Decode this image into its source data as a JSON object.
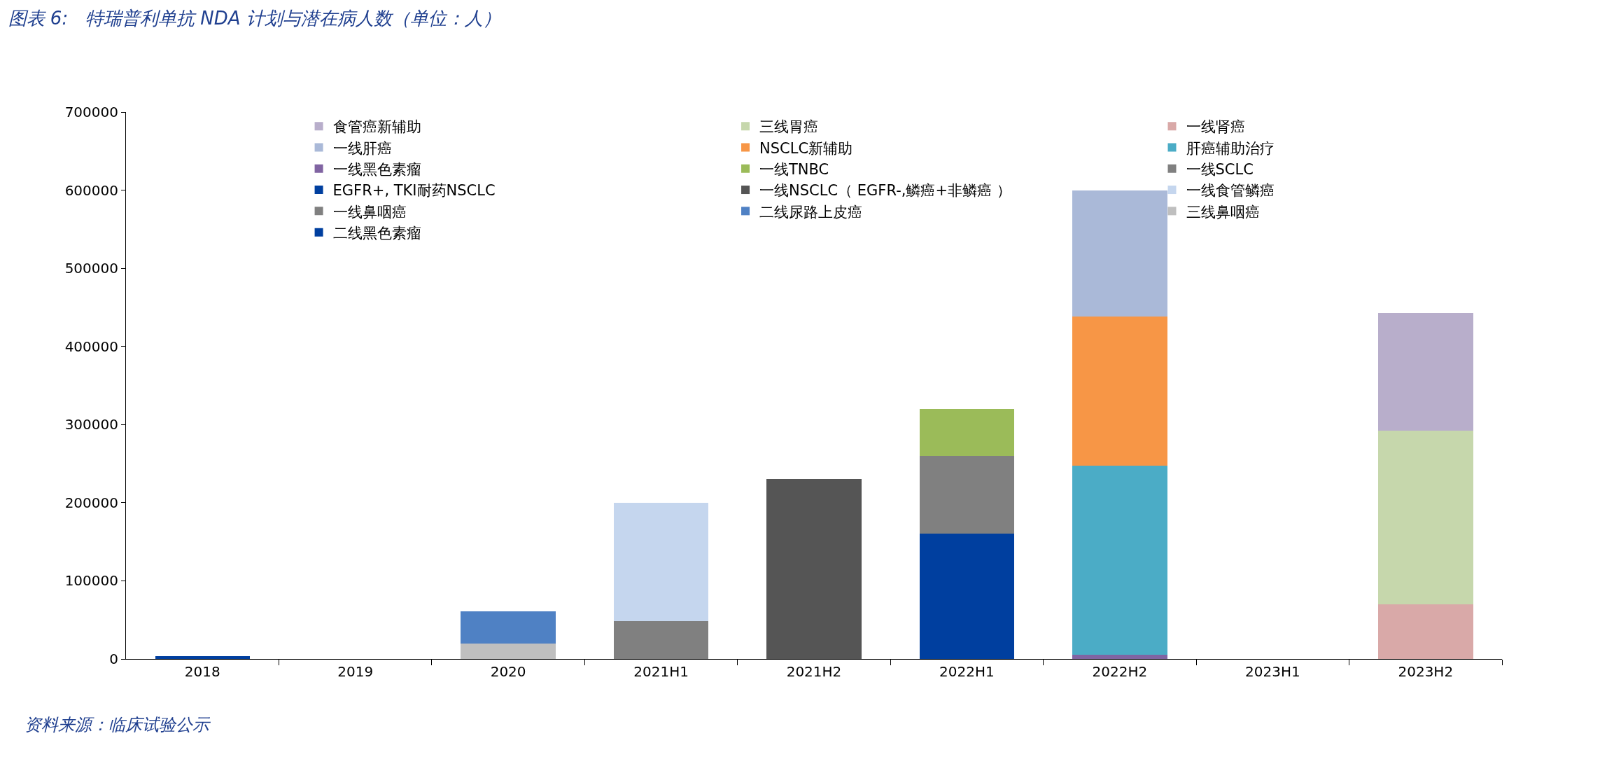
{
  "chart_data": {
    "type": "bar",
    "stacked": true,
    "title": "图表 6:   特瑞普利单抗 NDA 计划与潜在病人数（单位：人）",
    "annotations": [
      "资料来源：临床试验公示"
    ],
    "categories": [
      "2018",
      "2019",
      "2020",
      "2021H1",
      "2021H2",
      "2022H1",
      "2022H2",
      "2023H1",
      "2023H2"
    ],
    "ylim": [
      0,
      700000
    ],
    "yticks": [
      0,
      100000,
      200000,
      300000,
      400000,
      500000,
      600000,
      700000
    ],
    "legend": "top",
    "series": [
      {
        "name": "二线黑色素瘤",
        "color": "#003f9f",
        "values": [
          4000,
          null,
          null,
          null,
          null,
          null,
          null,
          null,
          null
        ]
      },
      {
        "name": "三线鼻咽癌",
        "color": "#bfbfbf",
        "values": [
          null,
          null,
          20000,
          null,
          null,
          null,
          null,
          null,
          null
        ]
      },
      {
        "name": "二线尿路上皮癌",
        "color": "#4f81c4",
        "values": [
          null,
          null,
          41000,
          null,
          null,
          null,
          null,
          null,
          null
        ]
      },
      {
        "name": "一线鼻咽癌",
        "color": "#808080",
        "values": [
          null,
          null,
          null,
          48000,
          null,
          null,
          null,
          null,
          null
        ]
      },
      {
        "name": "一线食管鳞癌",
        "color": "#c5d6ee",
        "values": [
          null,
          null,
          null,
          152000,
          null,
          null,
          null,
          null,
          null
        ]
      },
      {
        "name": "一线NSCLC（ EGFR-,鳞癌+非鳞癌 ）",
        "color": "#555555",
        "values": [
          null,
          null,
          null,
          null,
          230000,
          null,
          null,
          null,
          null
        ]
      },
      {
        "name": "EGFR+, TKI耐药NSCLC",
        "color": "#003f9f",
        "values": [
          null,
          null,
          null,
          null,
          null,
          160000,
          null,
          null,
          null
        ]
      },
      {
        "name": "一线SCLC",
        "color": "#808080",
        "values": [
          null,
          null,
          null,
          null,
          null,
          100000,
          null,
          null,
          null
        ]
      },
      {
        "name": "一线TNBC",
        "color": "#9bbb59",
        "values": [
          null,
          null,
          null,
          null,
          null,
          60000,
          null,
          null,
          null
        ]
      },
      {
        "name": "一线黑色素瘤",
        "color": "#8064a2",
        "values": [
          null,
          null,
          null,
          null,
          null,
          null,
          5000,
          null,
          null
        ]
      },
      {
        "name": "肝癌辅助治疗",
        "color": "#4bacc6",
        "values": [
          null,
          null,
          null,
          null,
          null,
          null,
          242000,
          null,
          null
        ]
      },
      {
        "name": "NSCLC新辅助",
        "color": "#f79646",
        "values": [
          null,
          null,
          null,
          null,
          null,
          null,
          191000,
          null,
          null
        ]
      },
      {
        "name": "一线肝癌",
        "color": "#aab9d8",
        "values": [
          null,
          null,
          null,
          null,
          null,
          null,
          162000,
          null,
          null
        ]
      },
      {
        "name": "一线肾癌",
        "color": "#d9a9a8",
        "values": [
          null,
          null,
          null,
          null,
          null,
          null,
          null,
          null,
          70000
        ]
      },
      {
        "name": "三线胃癌",
        "color": "#c6d7ac",
        "values": [
          null,
          null,
          null,
          null,
          null,
          null,
          null,
          null,
          222000
        ]
      },
      {
        "name": "食管癌新辅助",
        "color": "#b8aecb",
        "values": [
          null,
          null,
          null,
          null,
          null,
          null,
          null,
          null,
          151000
        ]
      }
    ]
  }
}
